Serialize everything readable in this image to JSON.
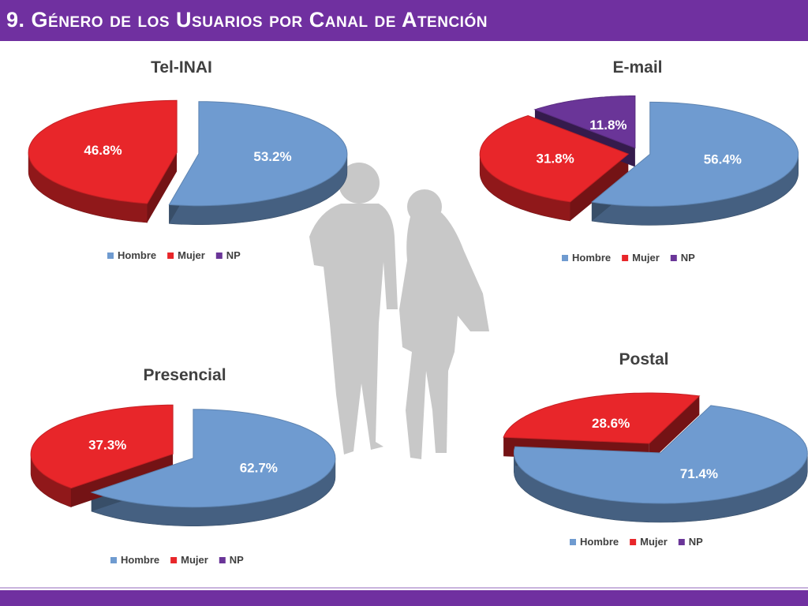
{
  "page": {
    "title": "9. Género de los Usuarios por Canal de Atención"
  },
  "colors": {
    "band": "#7030a0",
    "hombre": "#6f9bd0",
    "mujer": "#e8262a",
    "np": "#6a3598",
    "silhouette": "#c8c8c8"
  },
  "legend": [
    "Hombre",
    "Mujer",
    "NP"
  ],
  "chart_data": [
    {
      "type": "pie",
      "title": "Tel-INAI",
      "categories": [
        "Hombre",
        "Mujer"
      ],
      "values": [
        53.2,
        46.8
      ],
      "labels": [
        "53.2%",
        "46.8%"
      ],
      "legend": [
        "Hombre",
        "Mujer",
        "NP"
      ],
      "legend_position": "bottom",
      "style": "3d-exploded"
    },
    {
      "type": "pie",
      "title": "E-mail",
      "categories": [
        "Hombre",
        "Mujer",
        "NP"
      ],
      "values": [
        56.4,
        31.8,
        11.8
      ],
      "labels": [
        "56.4%",
        "31.8%",
        "11.8%"
      ],
      "legend": [
        "Hombre",
        "Mujer",
        "NP"
      ],
      "legend_position": "bottom",
      "style": "3d-exploded"
    },
    {
      "type": "pie",
      "title": "Presencial",
      "categories": [
        "Hombre",
        "Mujer"
      ],
      "values": [
        62.7,
        37.3
      ],
      "labels": [
        "62.7%",
        "37.3%"
      ],
      "legend": [
        "Hombre",
        "Mujer",
        "NP"
      ],
      "legend_position": "bottom",
      "style": "3d-exploded"
    },
    {
      "type": "pie",
      "title": "Postal",
      "categories": [
        "Hombre",
        "Mujer"
      ],
      "values": [
        71.4,
        28.6
      ],
      "labels": [
        "71.4%",
        "28.6%"
      ],
      "legend": [
        "Hombre",
        "Mujer",
        "NP"
      ],
      "legend_position": "bottom",
      "style": "3d-exploded"
    }
  ]
}
